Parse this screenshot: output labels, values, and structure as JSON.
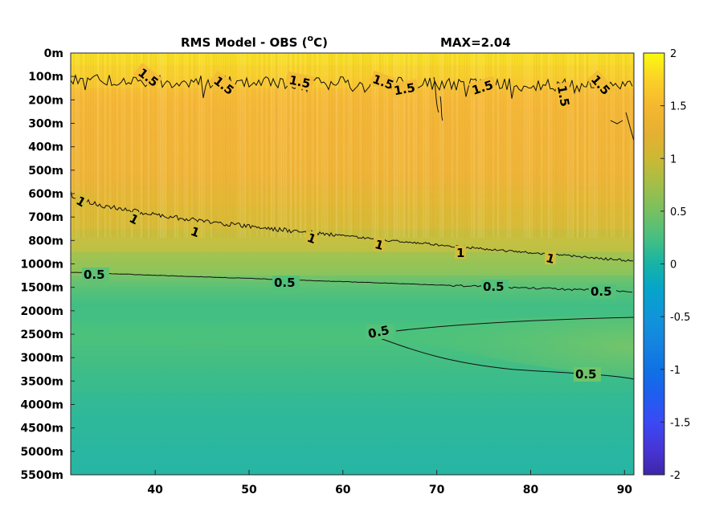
{
  "chart_data": {
    "type": "heatmap",
    "title": "RMS Model - OBS (",
    "title_sup": "o",
    "title_unit": "C)",
    "max_label": "MAX=2.04",
    "x_ticks": [
      40,
      50,
      60,
      70,
      80,
      90
    ],
    "x_range": [
      31,
      91
    ],
    "y_labels": [
      "0m",
      "100m",
      "200m",
      "300m",
      "400m",
      "500m",
      "600m",
      "700m",
      "800m",
      "1000m",
      "1500m",
      "2000m",
      "2500m",
      "3000m",
      "3500m",
      "4000m",
      "4500m",
      "5000m",
      "5500m"
    ],
    "colorbar": {
      "range": [
        -2,
        2
      ],
      "ticks": [
        "2",
        "1.5",
        "1",
        "0.5",
        "0",
        "-0.5",
        "-1",
        "-1.5",
        "-2"
      ],
      "colormap": "parula"
    },
    "field_rows": [
      {
        "level": 0,
        "value": 1.78
      },
      {
        "level": 1,
        "value": 1.62
      },
      {
        "level": 2,
        "value": 1.4
      },
      {
        "level": 3,
        "value": 1.34
      },
      {
        "level": 4,
        "value": 1.3
      },
      {
        "level": 5,
        "value": 1.24
      },
      {
        "level": 6,
        "value": 1.12
      },
      {
        "level": 7,
        "value": 1.0
      },
      {
        "level": 8,
        "value": 0.9
      },
      {
        "level": 9,
        "value": 0.68
      },
      {
        "level": 10,
        "value": 0.45
      },
      {
        "level": 11,
        "value": 0.42
      },
      {
        "level": 12,
        "value": 0.47
      },
      {
        "level": 13,
        "value": 0.44
      },
      {
        "level": 14,
        "value": 0.38
      },
      {
        "level": 15,
        "value": 0.33
      },
      {
        "level": 16,
        "value": 0.28
      },
      {
        "level": 17,
        "value": 0.24
      },
      {
        "level": 18,
        "value": 0.21
      }
    ],
    "contours": [
      {
        "value": 1.5,
        "labels": [
          "1.5",
          "1.5",
          "1.5",
          "1.5",
          "1.5",
          "1.5",
          "1.5",
          "1.5"
        ]
      },
      {
        "value": 1,
        "labels": [
          "1",
          "1",
          "1",
          "1",
          "1",
          "1"
        ]
      },
      {
        "value": 0.5,
        "labels": [
          "0.5",
          "0.5",
          "0.5",
          "0.5",
          "0.5",
          "0.5"
        ]
      }
    ],
    "contour_label_text": {
      "c15_1": "1.5",
      "c15_2": "1.5",
      "c15_3": "1.5",
      "c15_4": "1.5",
      "c15_5": "1.5",
      "c15_6": "1.5",
      "c15_7": "1.5",
      "c15_8": "1.5",
      "c15_9": "1.5",
      "c1_1": "1",
      "c1_2": "1",
      "c1_3": "1",
      "c1_4": "1",
      "c1_5": "1",
      "c1_6": "1",
      "c1_7": "1",
      "c05_1": "0.5",
      "c05_2": "0.5",
      "c05_3": "0.5",
      "c05_4": "0.5",
      "c05_5": "0.5",
      "c05_6": "0.5"
    }
  }
}
